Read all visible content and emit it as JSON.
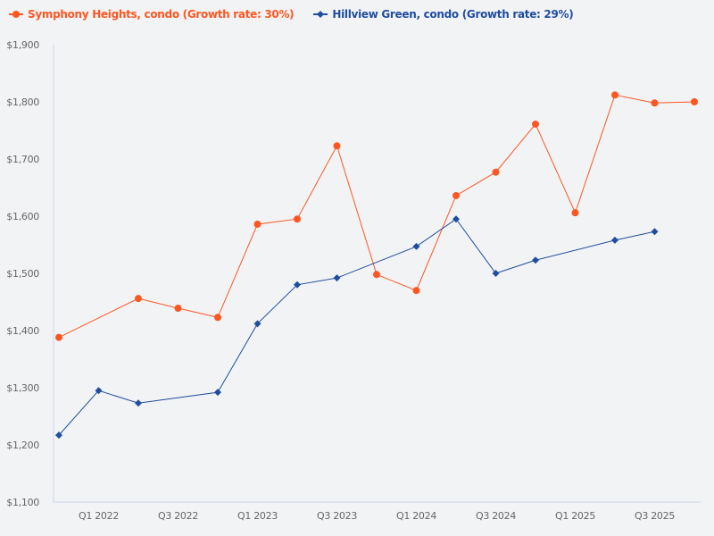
{
  "chart_data": {
    "type": "line",
    "x_tick_labels": [
      "Q1 2022",
      "Q3 2022",
      "Q1 2023",
      "Q3 2023",
      "Q1 2024",
      "Q3 2024",
      "Q1 2025",
      "Q3 2025"
    ],
    "y_tick_labels": [
      "$1,100",
      "$1,200",
      "$1,300",
      "$1,400",
      "$1,500",
      "$1,600",
      "$1,700",
      "$1,800",
      "$1,900"
    ],
    "ylim": [
      1100,
      1900
    ],
    "grid": false,
    "legend_position": "top-left",
    "series": [
      {
        "name": "Symphony Heights, condo (Growth rate: 30%)",
        "color": "#fc5722",
        "marker": "circle",
        "values": [
          1388,
          null,
          1456,
          1439,
          1423,
          1586,
          1595,
          1723,
          1498,
          1470,
          1636,
          1677,
          1761,
          1606,
          1812,
          1798,
          1800
        ]
      },
      {
        "name": "Hillview Green, condo (Growth rate: 29%)",
        "color": "#1f4e9e",
        "marker": "diamond",
        "values": [
          1217,
          1295,
          1273,
          null,
          1292,
          1412,
          1480,
          1492,
          null,
          1547,
          1595,
          1500,
          1523,
          null,
          1558,
          1573,
          null
        ]
      }
    ]
  }
}
